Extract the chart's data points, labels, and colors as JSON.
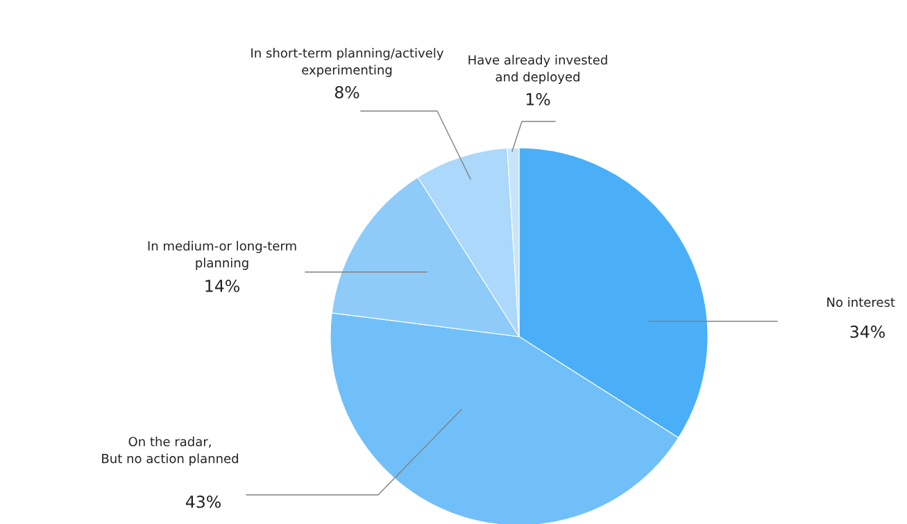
{
  "chart_data": {
    "type": "pie",
    "categories": [
      "No interest",
      "On the radar,\nBut no action planned",
      "In medium-or long-term\nplanning",
      "In short-term planning/actively\nexperimenting",
      "Have already invested\nand deployed"
    ],
    "values": [
      34,
      43,
      14,
      8,
      1
    ],
    "value_labels": [
      "34%",
      "43%",
      "14%",
      "8%",
      "1%"
    ],
    "colors": [
      "#4baff8",
      "#70bff9",
      "#8ecbf9",
      "#abd8fb",
      "#c6e5fc"
    ],
    "legend": false
  }
}
